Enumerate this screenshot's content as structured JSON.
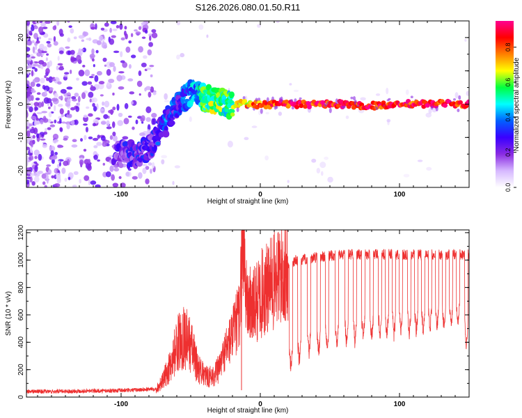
{
  "title": "S126.2026.080.01.50.R11",
  "chart_data": [
    {
      "type": "heatmap",
      "xlabel": "Height of straight line (km)",
      "ylabel": "Frequency (Hz)",
      "xlim": [
        -168,
        150
      ],
      "ylim": [
        -25,
        25
      ],
      "xticks": [
        -100,
        0,
        100
      ],
      "xtick_labels": [
        "-100",
        "0",
        "100"
      ],
      "yticks": [
        -20,
        -10,
        0,
        10,
        20
      ],
      "ytick_labels": [
        "-20",
        "-10",
        "0",
        "10",
        "20"
      ],
      "ridge": {
        "x": [
          -100,
          -95,
          -90,
          -85,
          -80,
          -75,
          -70,
          -65,
          -60,
          -55,
          -50,
          -45,
          -40,
          -35,
          -30,
          -25,
          -20,
          -15,
          -10,
          -5,
          0,
          20,
          40,
          60,
          80,
          100,
          120,
          150
        ],
        "freq": [
          -15,
          -15,
          -15,
          -14,
          -13,
          -10,
          -7,
          -4,
          0,
          2,
          3,
          3,
          2,
          1.5,
          0.8,
          0.2,
          -0.3,
          0.3,
          0.2,
          0,
          -0.3,
          0,
          0,
          0,
          -0.5,
          0.2,
          0.1,
          0
        ],
        "amplitude": [
          0.2,
          0.25,
          0.25,
          0.25,
          0.25,
          0.3,
          0.3,
          0.35,
          0.3,
          0.35,
          0.4,
          0.45,
          0.55,
          0.6,
          0.6,
          0.55,
          0.6,
          0.7,
          0.75,
          0.8,
          0.85,
          0.9,
          0.9,
          0.9,
          0.9,
          0.9,
          0.9,
          0.9
        ]
      },
      "colorbar": {
        "label": "Normalized spectral amplitude",
        "range": [
          0,
          0.95
        ],
        "ticks": [
          0.0,
          0.2,
          0.4,
          0.6,
          0.8
        ],
        "tick_labels": [
          "0.0",
          "0.2",
          "0.4",
          "0.6",
          "0.8"
        ],
        "colors": [
          "#ffffff",
          "#d6b8ff",
          "#8a2be2",
          "#3a00ff",
          "#0060ff",
          "#00ffff",
          "#00ff40",
          "#ffff00",
          "#ff8000",
          "#ff0000",
          "#ff0090"
        ]
      }
    },
    {
      "type": "line",
      "xlabel": "Height of straight line (km)",
      "ylabel": "SNR (10 * v/v)",
      "xlim": [
        -168,
        150
      ],
      "ylim": [
        0,
        1220
      ],
      "xticks": [
        -100,
        0,
        100
      ],
      "xtick_labels": [
        "-100",
        "0",
        "100"
      ],
      "yticks": [
        0,
        200,
        400,
        600,
        800,
        1000,
        1200
      ],
      "ytick_labels": [
        "0",
        "200",
        "400",
        "600",
        "800",
        "1000",
        "1200"
      ],
      "series": [
        {
          "name": "SNR",
          "color": "#ee3030",
          "x": [
            -168,
            -150,
            -130,
            -110,
            -90,
            -75,
            -70,
            -65,
            -60,
            -55,
            -50,
            -45,
            -40,
            -35,
            -30,
            -25,
            -20,
            -15,
            -12,
            -10,
            -5,
            0,
            5,
            10,
            15,
            20,
            25,
            30,
            40,
            50,
            60,
            70,
            80,
            90,
            100,
            110,
            120,
            130,
            140,
            150
          ],
          "values": [
            35,
            35,
            38,
            40,
            45,
            55,
            120,
            220,
            380,
            450,
            380,
            220,
            150,
            150,
            200,
            350,
            450,
            600,
            1200,
            700,
            650,
            750,
            780,
            850,
            900,
            950,
            1000,
            1000,
            1020,
            1030,
            1040,
            1040,
            1040,
            1040,
            1040,
            1040,
            1040,
            1040,
            1040,
            1040
          ],
          "dip_x": [
            22,
            28,
            35,
            42,
            48,
            55,
            62,
            68,
            74,
            80,
            86,
            91,
            96,
            101,
            107,
            112,
            117,
            122,
            127,
            132,
            137,
            142,
            148
          ],
          "dip_values": [
            180,
            220,
            280,
            300,
            320,
            340,
            360,
            380,
            400,
            400,
            410,
            420,
            430,
            440,
            440,
            450,
            460,
            470,
            480,
            480,
            490,
            500,
            360
          ]
        }
      ]
    }
  ]
}
